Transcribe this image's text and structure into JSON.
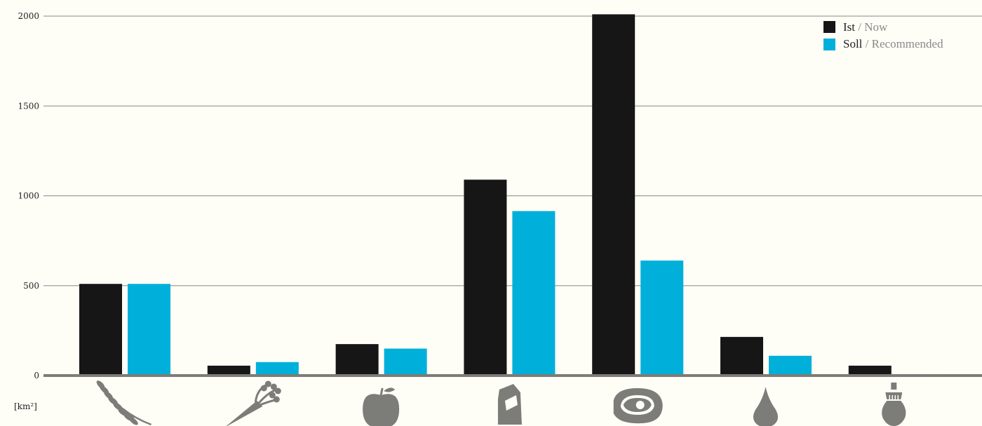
{
  "colors": {
    "background": "#fefdf6",
    "ist": "#161616",
    "soll": "#00b0da",
    "icon": "#7c7c78",
    "grid": "#8a8a8a",
    "axis": "#7c7c78"
  },
  "chart_data": {
    "type": "bar",
    "categories": [
      "grain-icon",
      "vegetable-icon",
      "fruit-icon",
      "dairy-icon",
      "meat-icon",
      "oil-icon",
      "sugar-icon"
    ],
    "series": [
      {
        "name": "Ist",
        "name_en": "Now",
        "values": [
          510,
          55,
          175,
          1090,
          2010,
          215,
          55
        ]
      },
      {
        "name": "Soll",
        "name_en": "Recommended",
        "values": [
          510,
          75,
          150,
          915,
          640,
          110,
          8
        ]
      }
    ],
    "yticks": [
      "0",
      "500",
      "1000",
      "1500",
      "2000"
    ],
    "ylim": [
      0,
      2000
    ],
    "unit_label": "[km²]",
    "grid": true,
    "legend_position": "top-right"
  }
}
